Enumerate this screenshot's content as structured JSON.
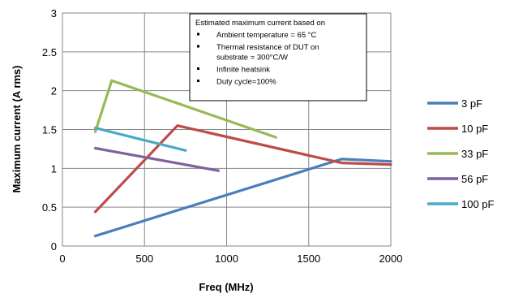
{
  "chart_data": {
    "type": "line",
    "xlabel": "Freq (MHz)",
    "ylabel": "Maximum current (A rms)",
    "xlim": [
      0,
      2000
    ],
    "ylim": [
      0,
      3
    ],
    "xticks": [
      0,
      500,
      1000,
      1500,
      2000
    ],
    "yticks": [
      0,
      0.5,
      1,
      1.5,
      2,
      2.5,
      3
    ],
    "xtick_labels": [
      "0",
      "500",
      "1000",
      "1500",
      "2000"
    ],
    "ytick_labels": [
      "0",
      "0.5",
      "1",
      "1.5",
      "2",
      "2.5",
      "3"
    ],
    "grid": true,
    "legend_position": "right",
    "series": [
      {
        "name": "3 pF",
        "color": "#4a7ebb",
        "x": [
          200,
          1700,
          2000
        ],
        "y": [
          0.13,
          1.12,
          1.09
        ]
      },
      {
        "name": "10 pF",
        "color": "#be4b48",
        "x": [
          200,
          700,
          1700,
          2000
        ],
        "y": [
          0.44,
          1.55,
          1.07,
          1.05
        ]
      },
      {
        "name": "33 pF",
        "color": "#98b954",
        "x": [
          200,
          300,
          1300
        ],
        "y": [
          1.47,
          2.13,
          1.4
        ]
      },
      {
        "name": "56 pF",
        "color": "#7d60a0",
        "x": [
          200,
          950
        ],
        "y": [
          1.26,
          0.97
        ]
      },
      {
        "name": "100 pF",
        "color": "#46aac5",
        "x": [
          200,
          750
        ],
        "y": [
          1.52,
          1.23
        ]
      }
    ],
    "annotation": {
      "title": "Estimated maximum current based on",
      "bullets": [
        "Ambient temperature = 65 °C",
        "Thermal resistance of  DUT on substrate  = 300°C/W",
        "Infinite heatsink",
        "Duty cycle=100%"
      ],
      "bullet_lines": [
        [
          "Ambient temperature = 65 °C"
        ],
        [
          "Thermal resistance of  DUT on",
          "substrate  = 300°C/W"
        ],
        [
          "Infinite heatsink"
        ],
        [
          "Duty cycle=100%"
        ]
      ]
    }
  }
}
